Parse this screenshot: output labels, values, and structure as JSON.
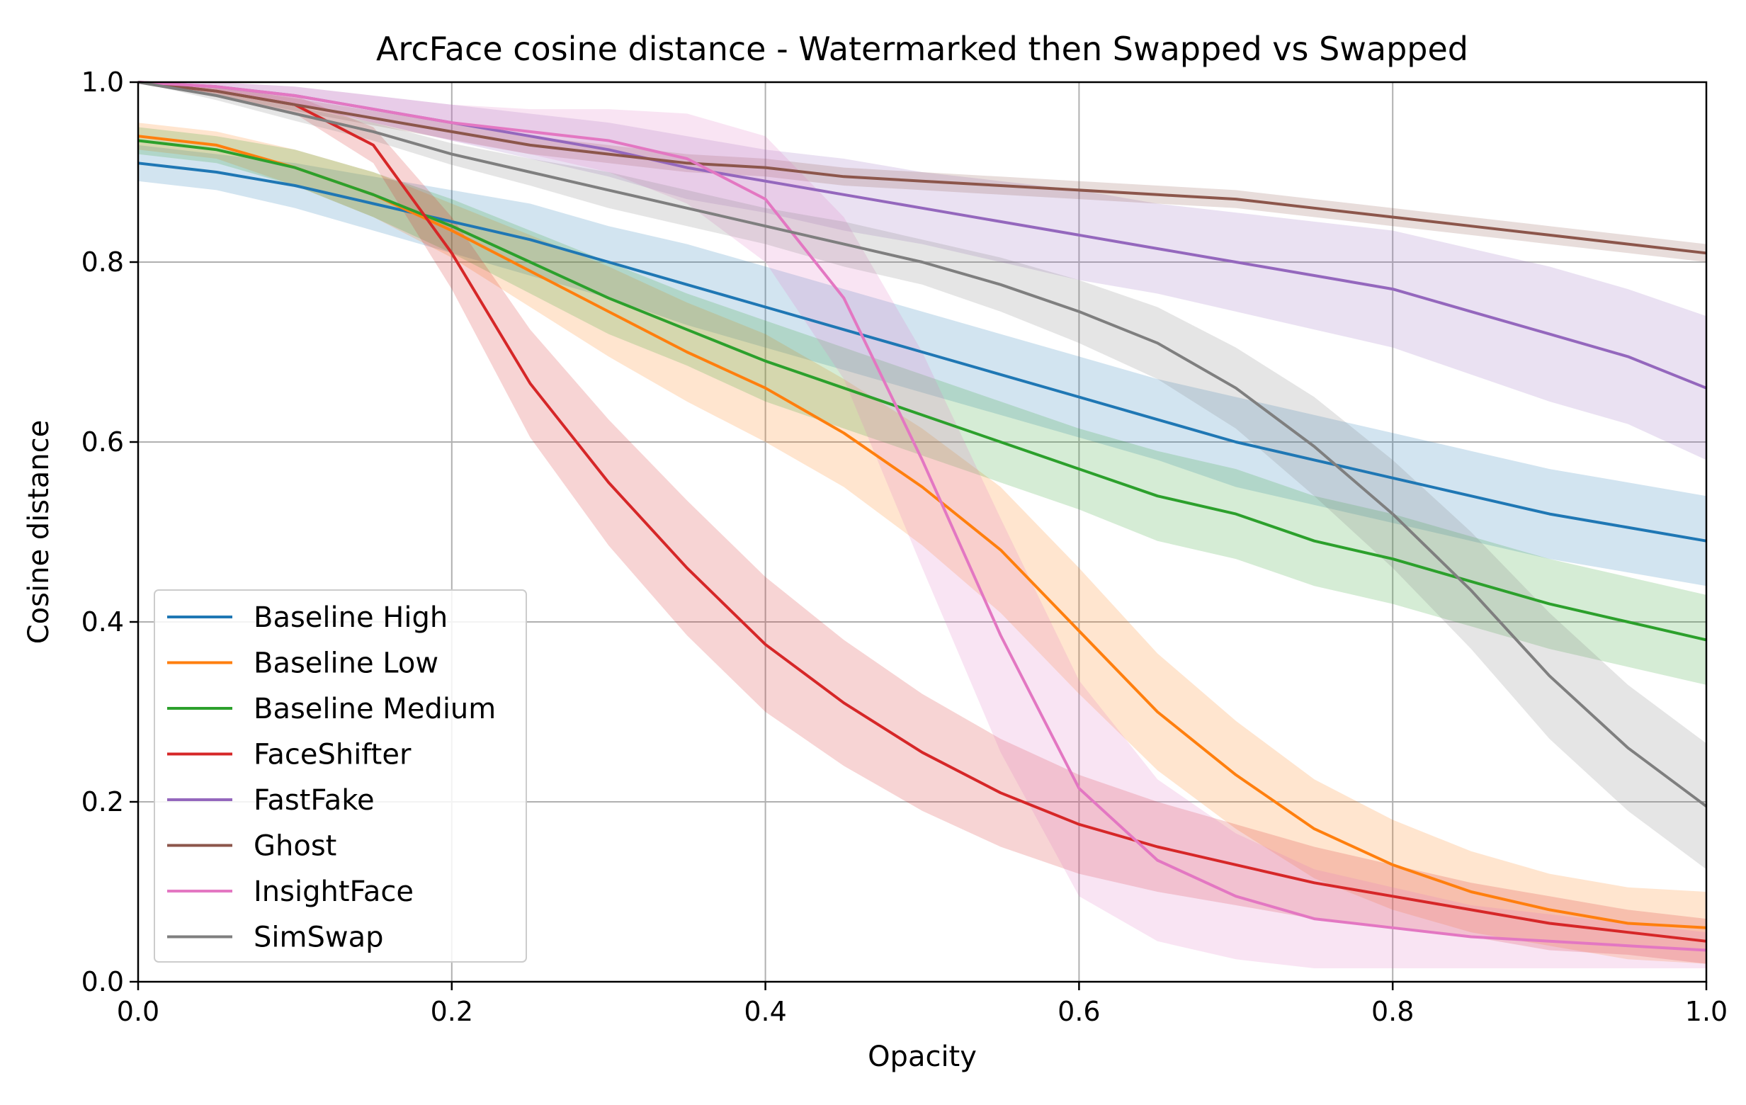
{
  "chart_data": {
    "type": "line",
    "title": "ArcFace cosine distance - Watermarked then Swapped vs Swapped",
    "xlabel": "Opacity",
    "ylabel": "Cosine distance",
    "xlim": [
      0.0,
      1.0
    ],
    "ylim": [
      0.0,
      1.0
    ],
    "grid": true,
    "legend_position": "lower-left",
    "xticks": [
      "0.0",
      "0.2",
      "0.4",
      "0.6",
      "0.8",
      "1.0"
    ],
    "yticks": [
      "0.0",
      "0.2",
      "0.4",
      "0.6",
      "0.8",
      "1.0"
    ],
    "x": [
      0.0,
      0.05,
      0.1,
      0.15,
      0.2,
      0.25,
      0.3,
      0.35,
      0.4,
      0.45,
      0.5,
      0.55,
      0.6,
      0.65,
      0.7,
      0.75,
      0.8,
      0.85,
      0.9,
      0.95,
      1.0
    ],
    "series": [
      {
        "name": "Baseline High",
        "color": "#1f77b4",
        "values": [
          0.91,
          0.9,
          0.885,
          0.865,
          0.845,
          0.825,
          0.8,
          0.775,
          0.75,
          0.725,
          0.7,
          0.675,
          0.65,
          0.625,
          0.6,
          0.58,
          0.56,
          0.54,
          0.52,
          0.505,
          0.49
        ],
        "spread": [
          0.02,
          0.02,
          0.025,
          0.03,
          0.035,
          0.04,
          0.04,
          0.045,
          0.045,
          0.045,
          0.045,
          0.045,
          0.045,
          0.045,
          0.05,
          0.05,
          0.05,
          0.05,
          0.05,
          0.05,
          0.05
        ]
      },
      {
        "name": "Baseline Low",
        "color": "#ff7f0e",
        "values": [
          0.94,
          0.93,
          0.905,
          0.875,
          0.835,
          0.79,
          0.745,
          0.7,
          0.66,
          0.61,
          0.55,
          0.48,
          0.39,
          0.3,
          0.23,
          0.17,
          0.13,
          0.1,
          0.08,
          0.065,
          0.06
        ],
        "spread": [
          0.015,
          0.015,
          0.02,
          0.025,
          0.03,
          0.04,
          0.05,
          0.055,
          0.06,
          0.06,
          0.065,
          0.07,
          0.07,
          0.065,
          0.06,
          0.055,
          0.05,
          0.045,
          0.04,
          0.04,
          0.04
        ]
      },
      {
        "name": "Baseline Medium",
        "color": "#2ca02c",
        "values": [
          0.935,
          0.925,
          0.905,
          0.875,
          0.84,
          0.8,
          0.76,
          0.725,
          0.69,
          0.66,
          0.63,
          0.6,
          0.57,
          0.54,
          0.52,
          0.49,
          0.47,
          0.445,
          0.42,
          0.4,
          0.38
        ],
        "spread": [
          0.015,
          0.015,
          0.02,
          0.025,
          0.03,
          0.035,
          0.04,
          0.04,
          0.045,
          0.045,
          0.045,
          0.045,
          0.045,
          0.05,
          0.05,
          0.05,
          0.05,
          0.05,
          0.05,
          0.05,
          0.05
        ]
      },
      {
        "name": "FaceShifter",
        "color": "#d62728",
        "values": [
          1.0,
          0.99,
          0.975,
          0.93,
          0.81,
          0.665,
          0.555,
          0.46,
          0.375,
          0.31,
          0.255,
          0.21,
          0.175,
          0.15,
          0.13,
          0.11,
          0.095,
          0.08,
          0.065,
          0.055,
          0.045
        ],
        "spread": [
          0.0,
          0.005,
          0.01,
          0.02,
          0.04,
          0.06,
          0.07,
          0.075,
          0.075,
          0.07,
          0.065,
          0.06,
          0.055,
          0.05,
          0.045,
          0.04,
          0.035,
          0.03,
          0.03,
          0.025,
          0.025
        ]
      },
      {
        "name": "FastFake",
        "color": "#9467bd",
        "values": [
          1.0,
          0.995,
          0.985,
          0.97,
          0.955,
          0.94,
          0.925,
          0.905,
          0.89,
          0.875,
          0.86,
          0.845,
          0.83,
          0.815,
          0.8,
          0.785,
          0.77,
          0.745,
          0.72,
          0.695,
          0.66
        ],
        "spread": [
          0.0,
          0.005,
          0.01,
          0.015,
          0.02,
          0.025,
          0.03,
          0.035,
          0.035,
          0.04,
          0.04,
          0.045,
          0.05,
          0.05,
          0.055,
          0.06,
          0.065,
          0.07,
          0.075,
          0.075,
          0.08
        ]
      },
      {
        "name": "Ghost",
        "color": "#8c564b",
        "values": [
          1.0,
          0.99,
          0.975,
          0.96,
          0.945,
          0.93,
          0.92,
          0.91,
          0.905,
          0.895,
          0.89,
          0.885,
          0.88,
          0.875,
          0.87,
          0.86,
          0.85,
          0.84,
          0.83,
          0.82,
          0.81
        ],
        "spread": [
          0.0,
          0.005,
          0.007,
          0.008,
          0.009,
          0.01,
          0.01,
          0.01,
          0.01,
          0.01,
          0.01,
          0.01,
          0.01,
          0.01,
          0.01,
          0.01,
          0.01,
          0.01,
          0.01,
          0.01,
          0.01
        ]
      },
      {
        "name": "InsightFace",
        "color": "#e377c2",
        "values": [
          1.0,
          0.995,
          0.985,
          0.97,
          0.955,
          0.945,
          0.935,
          0.915,
          0.87,
          0.76,
          0.58,
          0.385,
          0.215,
          0.135,
          0.095,
          0.07,
          0.06,
          0.05,
          0.045,
          0.04,
          0.035
        ],
        "spread": [
          0.0,
          0.005,
          0.01,
          0.015,
          0.02,
          0.025,
          0.035,
          0.05,
          0.07,
          0.09,
          0.12,
          0.13,
          0.12,
          0.09,
          0.07,
          0.055,
          0.045,
          0.035,
          0.03,
          0.025,
          0.02
        ]
      },
      {
        "name": "SimSwap",
        "color": "#7f7f7f",
        "values": [
          1.0,
          0.985,
          0.965,
          0.945,
          0.92,
          0.9,
          0.88,
          0.86,
          0.84,
          0.82,
          0.8,
          0.775,
          0.745,
          0.71,
          0.66,
          0.595,
          0.52,
          0.435,
          0.34,
          0.26,
          0.195
        ],
        "spread": [
          0.0,
          0.005,
          0.008,
          0.01,
          0.012,
          0.015,
          0.02,
          0.02,
          0.02,
          0.025,
          0.025,
          0.03,
          0.035,
          0.04,
          0.045,
          0.055,
          0.06,
          0.065,
          0.07,
          0.07,
          0.07
        ]
      }
    ]
  }
}
